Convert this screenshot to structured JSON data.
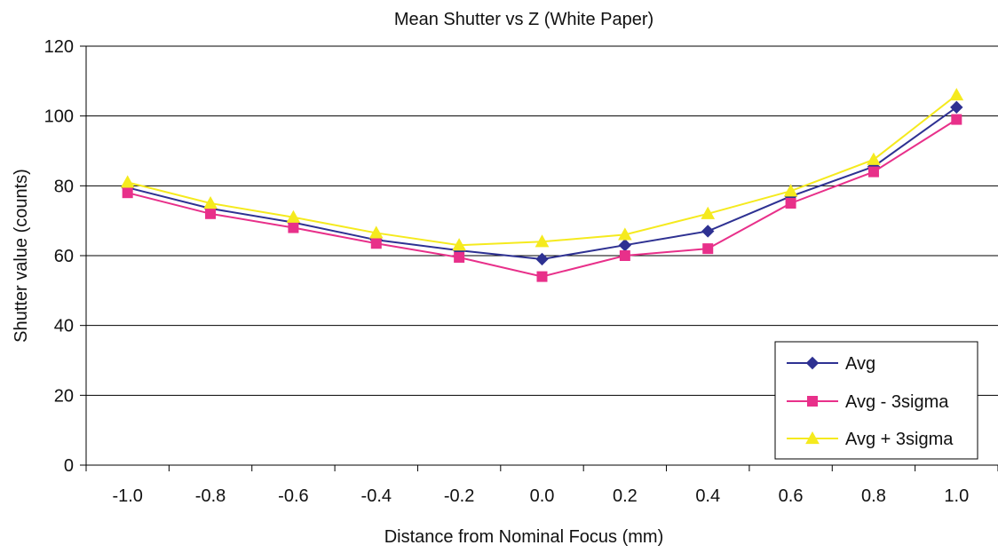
{
  "chart_data": {
    "type": "line",
    "title": "Mean Shutter vs Z (White Paper)",
    "xlabel": "Distance from Nominal Focus (mm)",
    "ylabel": "Shutter value (counts)",
    "x_tick_labels": [
      "-1.0",
      "-0.8",
      "-0.6",
      "-0.4",
      "-0.2",
      "0.0",
      "0.2",
      "0.4",
      "0.6",
      "0.8",
      "1.0"
    ],
    "x": [
      -1.0,
      -0.8,
      -0.6,
      -0.4,
      -0.2,
      0.0,
      0.2,
      0.4,
      0.6,
      0.8,
      1.0
    ],
    "y_ticks": [
      0,
      20,
      40,
      60,
      80,
      100,
      120
    ],
    "ylim": [
      0,
      120
    ],
    "grid": "horizontal",
    "legend_position": "bottom-right",
    "series": [
      {
        "name": "Avg",
        "color": "#2e3192",
        "marker": "diamond",
        "values": [
          79.5,
          73.5,
          69.5,
          64.5,
          61.5,
          59,
          63,
          67,
          77,
          85.5,
          102.5
        ]
      },
      {
        "name": "Avg - 3sigma",
        "color": "#e8308a",
        "marker": "square",
        "values": [
          78,
          72,
          68,
          63.5,
          59.5,
          54,
          60,
          62,
          75,
          84,
          99
        ]
      },
      {
        "name": "Avg + 3sigma",
        "color": "#f5ea1e",
        "marker": "triangle",
        "values": [
          81,
          75,
          71,
          66.5,
          63,
          64,
          66,
          72,
          78.5,
          87.5,
          106
        ]
      }
    ]
  }
}
